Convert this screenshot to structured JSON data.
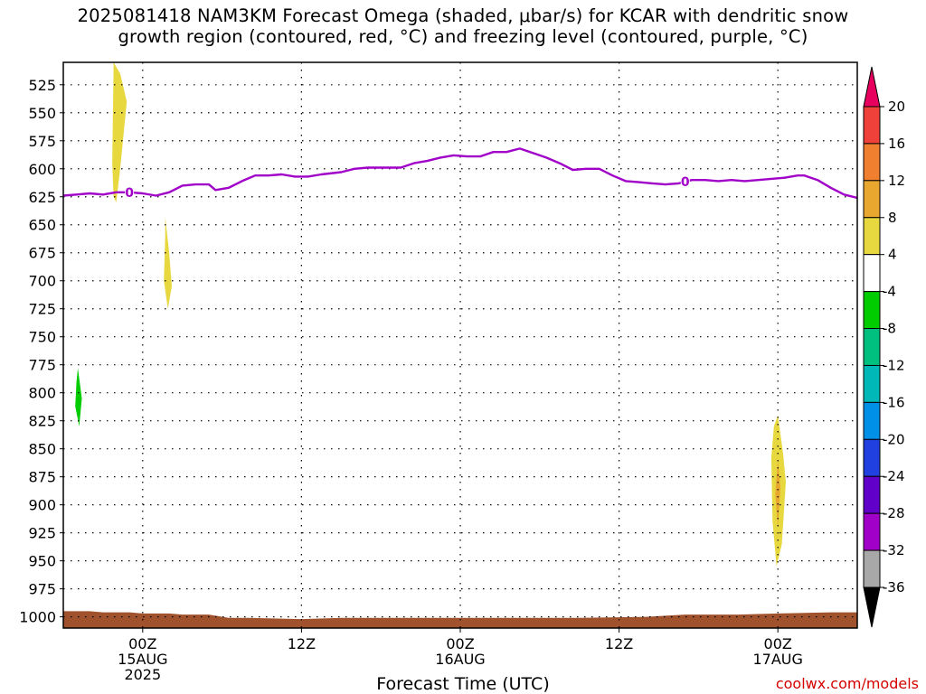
{
  "title": {
    "line1": "2025081418 NAM3KM Forecast Omega (shaded, μbar/s) for KCAR with dendritic snow",
    "line2": "growth region (contoured, red, °C) and freezing level (contoured, purple, °C)"
  },
  "xaxis_title": "Forecast Time (UTC)",
  "watermark": "coolwx.com/models",
  "chart_data": {
    "type": "heatmap",
    "title": "2025081418 NAM3KM Forecast Omega (shaded, μbar/s) for KCAR with dendritic snow growth region (contoured, red, °C) and freezing level (contoured, purple, °C)",
    "xlabel": "Forecast Time (UTC)",
    "ylabel": "",
    "x_unit": "hours since 2025-08-14 18Z",
    "xlim": [
      0,
      60
    ],
    "ylim": [
      1010,
      505
    ],
    "y_ticks": [
      525,
      550,
      575,
      600,
      625,
      650,
      675,
      700,
      725,
      750,
      775,
      800,
      825,
      850,
      875,
      900,
      925,
      950,
      975,
      1000
    ],
    "x_ticks": [
      {
        "x": 6,
        "lines": [
          "00Z",
          "15AUG",
          "2025"
        ]
      },
      {
        "x": 18,
        "lines": [
          "12Z"
        ]
      },
      {
        "x": 30,
        "lines": [
          "00Z",
          "16AUG"
        ]
      },
      {
        "x": 42,
        "lines": [
          "12Z"
        ]
      },
      {
        "x": 54,
        "lines": [
          "00Z",
          "17AUG"
        ]
      }
    ],
    "grid": true,
    "colorbar": {
      "levels": [
        20,
        16,
        12,
        8,
        4,
        -4,
        -8,
        -12,
        -16,
        -20,
        -24,
        -28,
        -32,
        -36
      ],
      "colors": [
        "#e8005f",
        "#f0403a",
        "#f08030",
        "#e8a830",
        "#e8d840",
        "#ffffff",
        "#00cc00",
        "#00c080",
        "#00b8b8",
        "#0090e8",
        "#2040e0",
        "#6000c8",
        "#a000c8",
        "#a8a8a8",
        "#000000"
      ]
    },
    "freezing_level": {
      "color": "#a000c8",
      "label": "0",
      "points": [
        [
          0,
          624
        ],
        [
          1,
          623
        ],
        [
          2,
          622
        ],
        [
          3,
          623
        ],
        [
          4,
          621
        ],
        [
          5,
          621
        ],
        [
          6,
          622
        ],
        [
          7,
          624
        ],
        [
          8,
          621
        ],
        [
          9,
          615
        ],
        [
          10,
          614
        ],
        [
          11,
          614
        ],
        [
          11.5,
          619
        ],
        [
          12.5,
          617
        ],
        [
          13.5,
          611
        ],
        [
          14.5,
          606
        ],
        [
          15.5,
          606
        ],
        [
          16.5,
          605
        ],
        [
          17.5,
          607
        ],
        [
          18.5,
          607
        ],
        [
          19.5,
          605
        ],
        [
          21,
          603
        ],
        [
          22,
          600
        ],
        [
          23,
          599
        ],
        [
          24,
          599
        ],
        [
          25.5,
          599
        ],
        [
          26.5,
          595
        ],
        [
          27.5,
          593
        ],
        [
          28.5,
          590
        ],
        [
          29.5,
          588
        ],
        [
          30.5,
          589
        ],
        [
          31.5,
          589
        ],
        [
          32.5,
          585
        ],
        [
          33.5,
          585
        ],
        [
          34.5,
          582
        ],
        [
          35.5,
          586
        ],
        [
          36.5,
          590
        ],
        [
          37.5,
          595
        ],
        [
          38.5,
          601
        ],
        [
          39.5,
          600
        ],
        [
          40.5,
          600
        ],
        [
          41.5,
          606
        ],
        [
          42.5,
          611
        ],
        [
          43.5,
          612
        ],
        [
          44.5,
          613
        ],
        [
          45.5,
          614
        ],
        [
          46.5,
          613
        ],
        [
          47.5,
          610
        ],
        [
          48.5,
          610
        ],
        [
          49.5,
          611
        ],
        [
          50.5,
          610
        ],
        [
          51.5,
          611
        ],
        [
          52.5,
          610
        ],
        [
          53.5,
          609
        ],
        [
          54.5,
          608
        ],
        [
          55.5,
          606
        ],
        [
          56,
          606
        ],
        [
          57,
          610
        ],
        [
          58,
          617
        ],
        [
          59,
          623
        ],
        [
          60,
          626
        ]
      ],
      "label_x": [
        5,
        47
      ]
    },
    "omega_regions": [
      {
        "value": "4 to 8",
        "color": "#e8d840",
        "points": [
          [
            3.8,
            505
          ],
          [
            4.3,
            515
          ],
          [
            4.8,
            540
          ],
          [
            4.3,
            600
          ],
          [
            4.0,
            630
          ],
          [
            3.8,
            625
          ],
          [
            3.7,
            595
          ],
          [
            3.8,
            510
          ]
        ]
      },
      {
        "value": "4 to 8",
        "color": "#e8d840",
        "points": [
          [
            7.7,
            643
          ],
          [
            8.0,
            675
          ],
          [
            8.2,
            705
          ],
          [
            7.9,
            725
          ],
          [
            7.6,
            700
          ],
          [
            7.7,
            660
          ]
        ]
      },
      {
        "value": "-8 to -4",
        "color": "#00cc00",
        "points": [
          [
            1.1,
            778
          ],
          [
            1.4,
            805
          ],
          [
            1.2,
            830
          ],
          [
            0.9,
            812
          ],
          [
            1.0,
            790
          ]
        ]
      },
      {
        "value": "4 to 8",
        "color": "#e8d840",
        "points": [
          [
            54.0,
            820
          ],
          [
            54.4,
            855
          ],
          [
            54.6,
            880
          ],
          [
            54.3,
            935
          ],
          [
            53.9,
            955
          ],
          [
            53.6,
            915
          ],
          [
            53.5,
            858
          ],
          [
            53.7,
            830
          ]
        ]
      },
      {
        "value": "8 to 12",
        "color": "#e8a830",
        "points": [
          [
            54.0,
            860
          ],
          [
            54.2,
            885
          ],
          [
            54.0,
            920
          ],
          [
            53.8,
            890
          ]
        ]
      }
    ],
    "terrain": {
      "color": "#a0522d",
      "surface_points": [
        [
          0,
          995
        ],
        [
          2,
          995
        ],
        [
          3,
          996
        ],
        [
          5,
          996
        ],
        [
          6,
          997
        ],
        [
          8,
          997
        ],
        [
          9,
          998
        ],
        [
          11,
          998
        ],
        [
          12.5,
          1001
        ],
        [
          14,
          1001
        ],
        [
          18,
          1002
        ],
        [
          21,
          1001
        ],
        [
          30,
          1001
        ],
        [
          39,
          1001
        ],
        [
          44,
          1000
        ],
        [
          47,
          998
        ],
        [
          51,
          998
        ],
        [
          54,
          997
        ],
        [
          58,
          996
        ],
        [
          60,
          996
        ]
      ]
    }
  }
}
